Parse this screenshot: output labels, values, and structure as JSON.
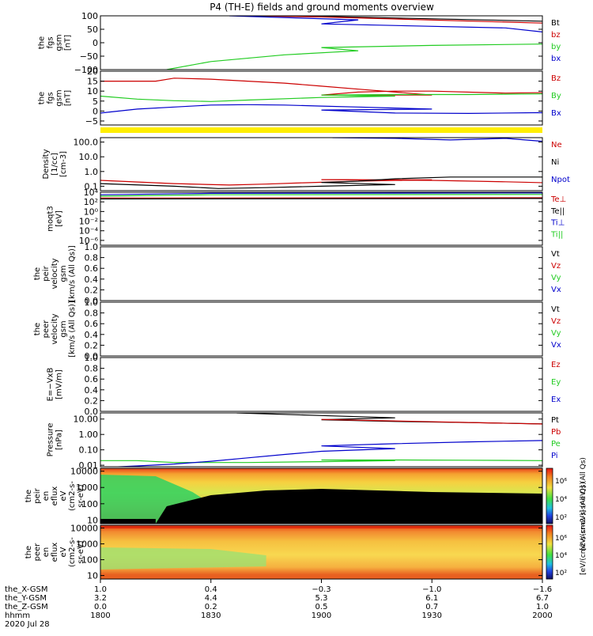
{
  "title": "P4 (TH-E) fields and ground moments overview",
  "colors": {
    "black": "#000000",
    "red": "#cc0000",
    "green": "#22cc22",
    "blue": "#0000cc",
    "yellow": "#ffee00"
  },
  "chart_data": [
    {
      "type": "line",
      "ylabel": [
        "the",
        "fgs",
        "gsm",
        "[nT]"
      ],
      "ylim": [
        -100,
        100
      ],
      "yticks": [
        "100",
        "50",
        "0",
        "−50",
        "−100"
      ],
      "legend": [
        "Bt",
        "bz",
        "by",
        "bx"
      ],
      "legend_colors": [
        "#000000",
        "#cc0000",
        "#22cc22",
        "#0000cc"
      ],
      "series": [
        {
          "name": "Bt",
          "color": "#000000",
          "x": [
            1837,
            1900,
            2000
          ],
          "y": [
            100,
            98,
            80
          ]
        },
        {
          "name": "bz",
          "color": "#cc0000",
          "x": [
            1840,
            1900,
            2000
          ],
          "y": [
            100,
            96,
            73
          ]
        },
        {
          "name": "by",
          "color": "#22cc22",
          "x": [
            1818,
            1830,
            1850,
            1870,
            1900,
            1930,
            2000
          ],
          "y": [
            -100,
            -70,
            -45,
            -30,
            -18,
            -10,
            -5
          ]
        },
        {
          "name": "bx",
          "color": "#0000cc",
          "x": [
            1835,
            1870,
            1900,
            1950,
            2000
          ],
          "y": [
            100,
            85,
            70,
            55,
            40
          ]
        }
      ]
    },
    {
      "type": "line",
      "ylabel": [
        "the",
        "fgs",
        "gsm",
        "[nT]"
      ],
      "ylim": [
        -7,
        20
      ],
      "yticks": [
        "20",
        "15",
        "10",
        "5",
        "0",
        "−5"
      ],
      "legend": [
        "Bz",
        "By",
        "Bx"
      ],
      "legend_colors": [
        "#cc0000",
        "#22cc22",
        "#0000cc"
      ],
      "series": [
        {
          "name": "Bz",
          "color": "#cc0000",
          "x": [
            1800,
            1815,
            1820,
            1830,
            1840,
            1850,
            1860,
            1870,
            1880,
            1890,
            1900,
            1910,
            1920,
            1930,
            1950,
            1970,
            2000
          ],
          "y": [
            15,
            15,
            16.5,
            16,
            15,
            14,
            12.5,
            11,
            9.5,
            8,
            8,
            9.5,
            10,
            10,
            9,
            9.5,
            9
          ]
        },
        {
          "name": "By",
          "color": "#22cc22",
          "x": [
            1800,
            1810,
            1820,
            1830,
            1840,
            1860,
            1880,
            1900,
            1920,
            1940,
            1960,
            1980,
            2000
          ],
          "y": [
            7.5,
            6,
            5.2,
            4.8,
            5.5,
            6.8,
            7.5,
            8,
            8.3,
            8.3,
            8.6,
            8.8,
            9.2
          ]
        },
        {
          "name": "Bx",
          "color": "#0000cc",
          "x": [
            1800,
            1810,
            1820,
            1830,
            1840,
            1850,
            1860,
            1870,
            1880,
            1890,
            1900,
            1920,
            1940,
            1960,
            1980,
            2000
          ],
          "y": [
            -1,
            1,
            2,
            3,
            3.2,
            3,
            2.5,
            2,
            1.5,
            1,
            0.5,
            -1,
            -1.2,
            -0.8,
            -1,
            -0.6
          ]
        }
      ]
    },
    {
      "type": "line",
      "ylabel": [
        "Density",
        "[1/cc]",
        "[cm-3]"
      ],
      "yscale": "log",
      "ylim": [
        0.05,
        200
      ],
      "yticks": [
        "100.0",
        "10.0",
        "1.0",
        "0.1"
      ],
      "ytick_values": [
        100,
        10,
        1,
        0.1
      ],
      "legend": [
        "Ne",
        "Ni",
        "Npot"
      ],
      "legend_colors": [
        "#cc0000",
        "#000000",
        "#0000cc"
      ],
      "series": [
        {
          "name": "Ne",
          "color": "#cc0000",
          "x": [
            1800,
            1820,
            1835,
            1845,
            1855,
            1870,
            1880,
            1890,
            1900,
            1910,
            1920,
            1930,
            1950,
            1970,
            1980,
            2000
          ],
          "y": [
            0.25,
            0.15,
            0.12,
            0.14,
            0.17,
            0.22,
            0.25,
            0.27,
            0.28,
            0.27,
            0.26,
            0.25,
            0.2,
            0.15,
            0.13,
            0.12
          ]
        },
        {
          "name": "Ni",
          "color": "#000000",
          "x": [
            1800,
            1820,
            1832,
            1845,
            1860,
            1880,
            1900,
            1910,
            1920,
            1935,
            1950,
            1980,
            2000
          ],
          "y": [
            0.15,
            0.1,
            0.07,
            0.08,
            0.1,
            0.13,
            0.18,
            0.22,
            0.32,
            0.42,
            0.42,
            0.42,
            0.4
          ]
        },
        {
          "name": "Npot",
          "color": "#0000cc",
          "x": [
            1903,
            1920,
            1935,
            1950,
            1965,
            1980,
            2000
          ],
          "y": [
            200,
            180,
            140,
            180,
            90,
            60,
            60
          ]
        }
      ]
    },
    {
      "type": "line",
      "ylabel": [
        "moqt3",
        "[eV]"
      ],
      "yscale": "log",
      "ylim": [
        1e-07,
        10000
      ],
      "yticks": [
        "10⁴",
        "10²",
        "10⁰",
        "10⁻²",
        "10⁻⁴",
        "10⁻⁶"
      ],
      "ytick_values": [
        10000,
        100,
        1,
        0.01,
        0.0001,
        1e-06
      ],
      "legend": [
        "Te⊥",
        "Te||",
        "Ti⊥",
        "Ti||"
      ],
      "legend_colors": [
        "#cc0000",
        "#000000",
        "#0000cc",
        "#22cc22"
      ],
      "series": [
        {
          "name": "Te⊥",
          "color": "#cc0000",
          "x": [
            1800,
            2000
          ],
          "y": [
            600,
            700
          ]
        },
        {
          "name": "Te||",
          "color": "#000000",
          "x": [
            1800,
            2000
          ],
          "y": [
            400,
            500
          ]
        },
        {
          "name": "Ti⊥",
          "color": "#0000cc",
          "x": [
            1800,
            1830,
            2000
          ],
          "y": [
            3000,
            6000,
            7000
          ]
        },
        {
          "name": "Ti||",
          "color": "#22cc22",
          "x": [
            1800,
            1830,
            2000
          ],
          "y": [
            1500,
            3000,
            3500
          ]
        }
      ]
    },
    {
      "type": "line",
      "ylabel": [
        "the",
        "peir",
        "velocity",
        "gsm",
        "[km/s (All Qs)]"
      ],
      "ylim": [
        0,
        1
      ],
      "yticks": [
        "1.0",
        "0.8",
        "0.6",
        "0.4",
        "0.2",
        "0.0"
      ],
      "legend": [
        "Vt",
        "Vz",
        "Vy",
        "Vx"
      ],
      "legend_colors": [
        "#000000",
        "#cc0000",
        "#22cc22",
        "#0000cc"
      ],
      "series": []
    },
    {
      "type": "line",
      "ylabel": [
        "the",
        "peer",
        "velocity",
        "gsm",
        "[km/s (All Qs)]"
      ],
      "ylim": [
        0,
        1
      ],
      "yticks": [
        "1.0",
        "0.8",
        "0.6",
        "0.4",
        "0.2",
        "0.0"
      ],
      "legend": [
        "Vt",
        "Vz",
        "Vy",
        "Vx"
      ],
      "legend_colors": [
        "#000000",
        "#cc0000",
        "#22cc22",
        "#0000cc"
      ],
      "series": []
    },
    {
      "type": "line",
      "ylabel": [
        "E=−VxB",
        "[mV/m]"
      ],
      "ylim": [
        0,
        1
      ],
      "yticks": [
        "1.0",
        "0.8",
        "0.6",
        "0.4",
        "0.2",
        "0.0"
      ],
      "legend": [
        "Ez",
        "Ey",
        "Ex"
      ],
      "legend_colors": [
        "#cc0000",
        "#22cc22",
        "#0000cc"
      ],
      "series": []
    },
    {
      "type": "line",
      "ylabel": [
        "Pressure",
        "[nPa]"
      ],
      "yscale": "log",
      "ylim": [
        0.008,
        25
      ],
      "yticks": [
        "10.00",
        "1.00",
        "0.10",
        "0.01"
      ],
      "ytick_values": [
        10,
        1,
        0.1,
        0.01
      ],
      "legend": [
        "Pt",
        "Pb",
        "Pe",
        "Pi"
      ],
      "legend_colors": [
        "#000000",
        "#cc0000",
        "#22cc22",
        "#0000cc"
      ],
      "series": [
        {
          "name": "Pt",
          "color": "#000000",
          "x": [
            1837,
            1860,
            1880,
            1900,
            1920,
            1940,
            1960,
            1980,
            2000
          ],
          "y": [
            25,
            17,
            12,
            9,
            7,
            6,
            4.8,
            4,
            3.3
          ]
        },
        {
          "name": "Pb",
          "color": "#cc0000",
          "x": [
            1900,
            1940,
            1970,
            2000
          ],
          "y": [
            9.5,
            6,
            4.3,
            3.2
          ]
        },
        {
          "name": "Pe",
          "color": "#22cc22",
          "x": [
            1800,
            1810,
            1820,
            1840,
            1860,
            1880,
            1900,
            1920,
            1940,
            1960,
            1970,
            1980,
            2000
          ],
          "y": [
            0.02,
            0.02,
            0.015,
            0.015,
            0.017,
            0.02,
            0.022,
            0.022,
            0.021,
            0.02,
            0.011,
            0.011,
            0.02
          ]
        },
        {
          "name": "Pi",
          "color": "#0000cc",
          "x": [
            1800,
            1810,
            1820,
            1830,
            1840,
            1850,
            1860,
            1880,
            1900,
            1920,
            1940,
            1960,
            1980,
            2000
          ],
          "y": [
            0.007,
            0.009,
            0.012,
            0.018,
            0.03,
            0.05,
            0.08,
            0.12,
            0.18,
            0.25,
            0.33,
            0.4,
            0.45,
            0.5
          ]
        }
      ]
    },
    {
      "type": "heatmap",
      "ylabel": [
        "the",
        "peir",
        "en",
        "eflux",
        "eV",
        "(cm2-s-",
        "sr-eV)"
      ],
      "yscale": "log",
      "ylim": [
        6,
        15000
      ],
      "yticks": [
        "10000",
        "1000",
        "100",
        "10"
      ],
      "ytick_values": [
        10000,
        1000,
        100,
        10
      ],
      "colorbar_ticks": [
        "10⁶",
        "10⁴",
        "10²"
      ],
      "colorbar_label": "[eV/(cm2-s-sr-eV)] (All Qs)"
    },
    {
      "type": "heatmap",
      "ylabel": [
        "the",
        "peer",
        "en",
        "eflux",
        "eV",
        "(cm2-s-",
        "sr-eV)"
      ],
      "yscale": "log",
      "ylim": [
        6,
        15000
      ],
      "yticks": [
        "10000",
        "1000",
        "100",
        "10"
      ],
      "ytick_values": [
        10000,
        1000,
        100,
        10
      ],
      "colorbar_ticks": [
        "10⁶",
        "10⁴",
        "10²"
      ],
      "colorbar_label": "[eV/(cm2-s-sr-eV)] (All Qs)"
    }
  ],
  "xaxis": {
    "row_labels": [
      "the_X-GSM",
      "the_Y-GSM",
      "the_Z-GSM",
      "hhmm",
      "2020 Jul 28"
    ],
    "tick_times": [
      1800,
      1830,
      1900,
      1930,
      2000
    ],
    "columns": [
      [
        "1.0",
        "3.2",
        "0.0",
        "1800"
      ],
      [
        "0.4",
        "4.4",
        "0.2",
        "1830"
      ],
      [
        "−0.3",
        "5.3",
        "0.5",
        "1900"
      ],
      [
        "−1.0",
        "6.1",
        "0.7",
        "1930"
      ],
      [
        "−1.6",
        "6.7",
        "1.0",
        "2000"
      ]
    ]
  }
}
